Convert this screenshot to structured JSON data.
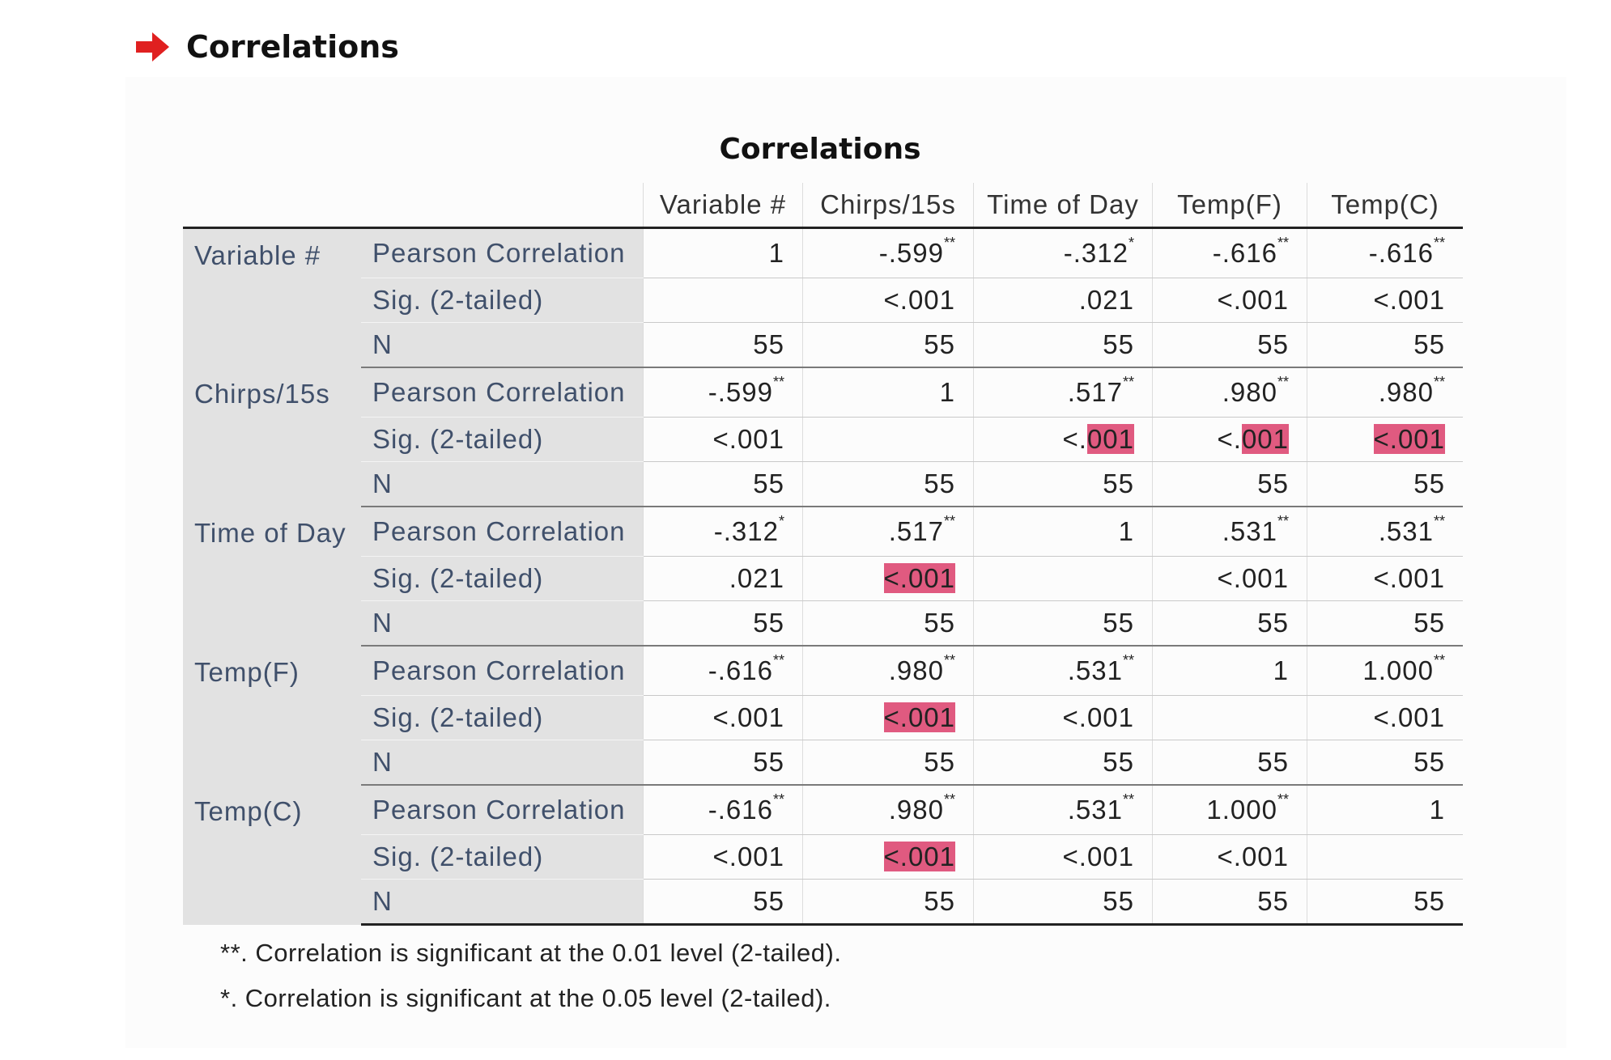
{
  "section": {
    "title": "Correlations",
    "icon": "red-arrow-icon",
    "icon_color": "#e02020"
  },
  "pivot": {
    "title": "Correlations",
    "columns": [
      "Variable #",
      "Chirps/15s",
      "Time of Day",
      "Temp(F)",
      "Temp(C)"
    ],
    "stat_labels": {
      "pc": "Pearson Correlation",
      "sig": "Sig. (2-tailed)",
      "n": "N"
    },
    "highlight_color": "#e05a80",
    "rows": [
      {
        "name": "Variable #",
        "pc": [
          [
            "1",
            ""
          ],
          [
            "-.599",
            "**"
          ],
          [
            "-.312",
            "*"
          ],
          [
            "-.616",
            "**"
          ],
          [
            "-.616",
            "**"
          ]
        ],
        "sig": [
          [
            "",
            ""
          ],
          [
            "<.001",
            ""
          ],
          [
            ".021",
            ""
          ],
          [
            "<.001",
            ""
          ],
          [
            "<.001",
            ""
          ]
        ],
        "n": [
          "55",
          "55",
          "55",
          "55",
          "55"
        ]
      },
      {
        "name": "Chirps/15s",
        "pc": [
          [
            "-.599",
            "**"
          ],
          [
            "1",
            ""
          ],
          [
            ".517",
            "**"
          ],
          [
            ".980",
            "**"
          ],
          [
            ".980",
            "**"
          ]
        ],
        "sig": [
          [
            "<.001",
            ""
          ],
          [
            "",
            ""
          ],
          [
            "<.001",
            "part"
          ],
          [
            "<.001",
            "part"
          ],
          [
            "<.001",
            "full"
          ]
        ],
        "n": [
          "55",
          "55",
          "55",
          "55",
          "55"
        ]
      },
      {
        "name": "Time of Day",
        "pc": [
          [
            "-.312",
            "*"
          ],
          [
            ".517",
            "**"
          ],
          [
            "1",
            ""
          ],
          [
            ".531",
            "**"
          ],
          [
            ".531",
            "**"
          ]
        ],
        "sig": [
          [
            ".021",
            ""
          ],
          [
            "<.001",
            "full"
          ],
          [
            "",
            ""
          ],
          [
            "<.001",
            ""
          ],
          [
            "<.001",
            ""
          ]
        ],
        "n": [
          "55",
          "55",
          "55",
          "55",
          "55"
        ]
      },
      {
        "name": "Temp(F)",
        "pc": [
          [
            "-.616",
            "**"
          ],
          [
            ".980",
            "**"
          ],
          [
            ".531",
            "**"
          ],
          [
            "1",
            ""
          ],
          [
            "1.000",
            "**"
          ]
        ],
        "sig": [
          [
            "<.001",
            ""
          ],
          [
            "<.001",
            "full"
          ],
          [
            "<.001",
            ""
          ],
          [
            "",
            ""
          ],
          [
            "<.001",
            ""
          ]
        ],
        "n": [
          "55",
          "55",
          "55",
          "55",
          "55"
        ]
      },
      {
        "name": "Temp(C)",
        "pc": [
          [
            "-.616",
            "**"
          ],
          [
            ".980",
            "**"
          ],
          [
            ".531",
            "**"
          ],
          [
            "1.000",
            "**"
          ],
          [
            "1",
            ""
          ]
        ],
        "sig": [
          [
            "<.001",
            ""
          ],
          [
            "<.001",
            "full"
          ],
          [
            "<.001",
            ""
          ],
          [
            "<.001",
            ""
          ],
          [
            "",
            ""
          ]
        ],
        "n": [
          "55",
          "55",
          "55",
          "55",
          "55"
        ]
      }
    ],
    "footnotes": [
      "**. Correlation is significant at the 0.01 level (2-tailed).",
      "*. Correlation is significant at the 0.05 level (2-tailed)."
    ]
  }
}
